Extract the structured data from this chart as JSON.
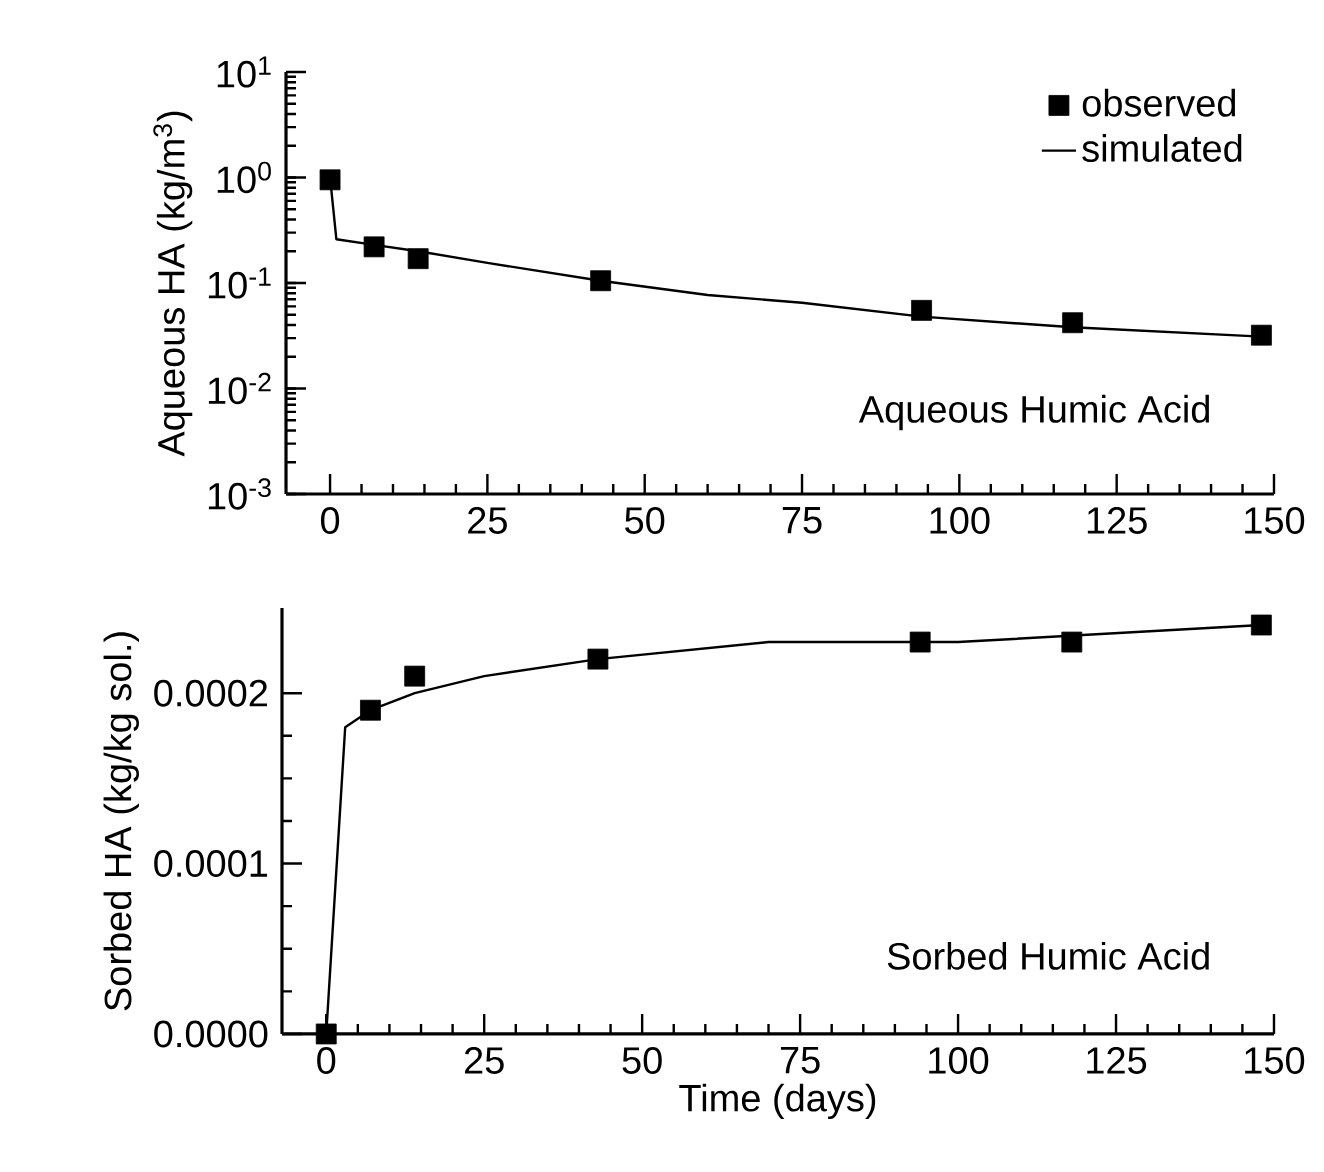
{
  "chart_data": [
    {
      "type": "scatter",
      "ylabel": "Aqueous HA (kg/m$^{3}$)",
      "annotations": [
        "Aqueous Humic Acid"
      ],
      "log": "y",
      "legend": "top right",
      "xlim": [
        -7,
        150
      ],
      "xticks": [
        0,
        25,
        50,
        75,
        100,
        125,
        150
      ],
      "ylim": [
        0.001,
        10
      ],
      "yticks": [
        {
          "value": 0.001,
          "label": "10$^{-3}$"
        },
        {
          "value": 0.01,
          "label": "10$^{-2}$"
        },
        {
          "value": 0.1,
          "label": "10$^{-1}$"
        },
        {
          "value": 1,
          "label": "10$^{0}$"
        },
        {
          "value": 10,
          "label": "10$^{1}$"
        }
      ],
      "series": [
        {
          "name": "observed",
          "marker": "square",
          "color": "#000000",
          "x": [
            0,
            7,
            14,
            43,
            94,
            118,
            148
          ],
          "values": [
            0.95,
            0.22,
            0.17,
            0.105,
            0.055,
            0.042,
            0.032
          ]
        },
        {
          "name": "simulated",
          "type": "line",
          "color": "#000000",
          "x": [
            0,
            1,
            7,
            14,
            25,
            43,
            60,
            75,
            94,
            118,
            148
          ],
          "values": [
            1.0,
            0.26,
            0.23,
            0.2,
            0.155,
            0.105,
            0.077,
            0.065,
            0.048,
            0.038,
            0.031
          ]
        }
      ]
    },
    {
      "type": "scatter",
      "xlabel": "Time (days)",
      "ylabel": "Sorbed HA (kg/kg sol.)",
      "annotations": [
        "Sorbed Humic Acid"
      ],
      "xlim": [
        -7,
        150
      ],
      "xticks": [
        0,
        25,
        50,
        75,
        100,
        125,
        150
      ],
      "ylim": [
        0,
        0.00025
      ],
      "yticks": [
        {
          "value": 0,
          "label": "0.0000"
        },
        {
          "value": 0.0001,
          "label": "0.0001"
        },
        {
          "value": 0.0002,
          "label": "0.0002"
        }
      ],
      "series": [
        {
          "marker": "square",
          "color": "#000000",
          "x": [
            0,
            7,
            14,
            43,
            94,
            118,
            148
          ],
          "values": [
            0,
            0.00019,
            0.00021,
            0.00022,
            0.00023,
            0.00023,
            0.00024
          ]
        },
        {
          "type": "line",
          "color": "#000000",
          "x": [
            0,
            3,
            7,
            14,
            25,
            43,
            70,
            100,
            148
          ],
          "values": [
            0,
            0.00018,
            0.00019,
            0.0002,
            0.00021,
            0.00022,
            0.00023,
            0.00023,
            0.00024
          ]
        }
      ]
    }
  ]
}
